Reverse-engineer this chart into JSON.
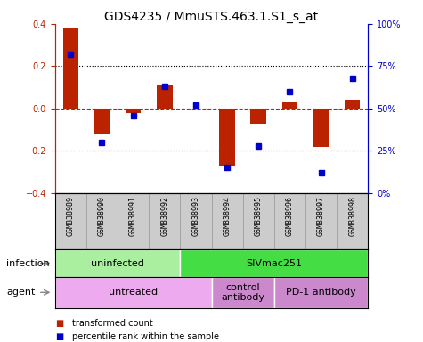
{
  "title": "GDS4235 / MmuSTS.463.1.S1_s_at",
  "samples": [
    "GSM838989",
    "GSM838990",
    "GSM838991",
    "GSM838992",
    "GSM838993",
    "GSM838994",
    "GSM838995",
    "GSM838996",
    "GSM838997",
    "GSM838998"
  ],
  "transformed_count": [
    0.38,
    -0.12,
    -0.02,
    0.11,
    0.0,
    -0.27,
    -0.07,
    0.03,
    -0.18,
    0.04
  ],
  "percentile_rank": [
    82,
    30,
    46,
    63,
    52,
    15,
    28,
    60,
    12,
    68
  ],
  "bar_color": "#bb2200",
  "dot_color": "#0000cc",
  "ylim": [
    -0.4,
    0.4
  ],
  "y2lim": [
    0,
    100
  ],
  "yticks": [
    -0.4,
    -0.2,
    0.0,
    0.2,
    0.4
  ],
  "y2ticks": [
    0,
    25,
    50,
    75,
    100
  ],
  "y2ticklabels": [
    "0%",
    "25%",
    "50%",
    "75%",
    "100%"
  ],
  "hlines_dotted": [
    -0.2,
    0.2
  ],
  "infection_labels": [
    {
      "text": "uninfected",
      "start": 0,
      "end": 3,
      "color": "#aaeea0"
    },
    {
      "text": "SIVmac251",
      "start": 4,
      "end": 9,
      "color": "#44dd44"
    }
  ],
  "agent_labels": [
    {
      "text": "untreated",
      "start": 0,
      "end": 4,
      "color": "#eeaaee"
    },
    {
      "text": "control\nantibody",
      "start": 5,
      "end": 6,
      "color": "#cc88cc"
    },
    {
      "text": "PD-1 antibody",
      "start": 7,
      "end": 9,
      "color": "#cc88cc"
    }
  ],
  "legend_items": [
    {
      "label": "transformed count",
      "color": "#bb2200"
    },
    {
      "label": "percentile rank within the sample",
      "color": "#0000cc"
    }
  ],
  "infection_row_label": "infection",
  "agent_row_label": "agent",
  "title_fontsize": 10,
  "tick_fontsize": 7,
  "annotation_fontsize": 8,
  "sample_fontsize": 6,
  "legend_fontsize": 7,
  "bar_width": 0.5,
  "sample_bg_color": "#cccccc",
  "sample_border_color": "#999999"
}
